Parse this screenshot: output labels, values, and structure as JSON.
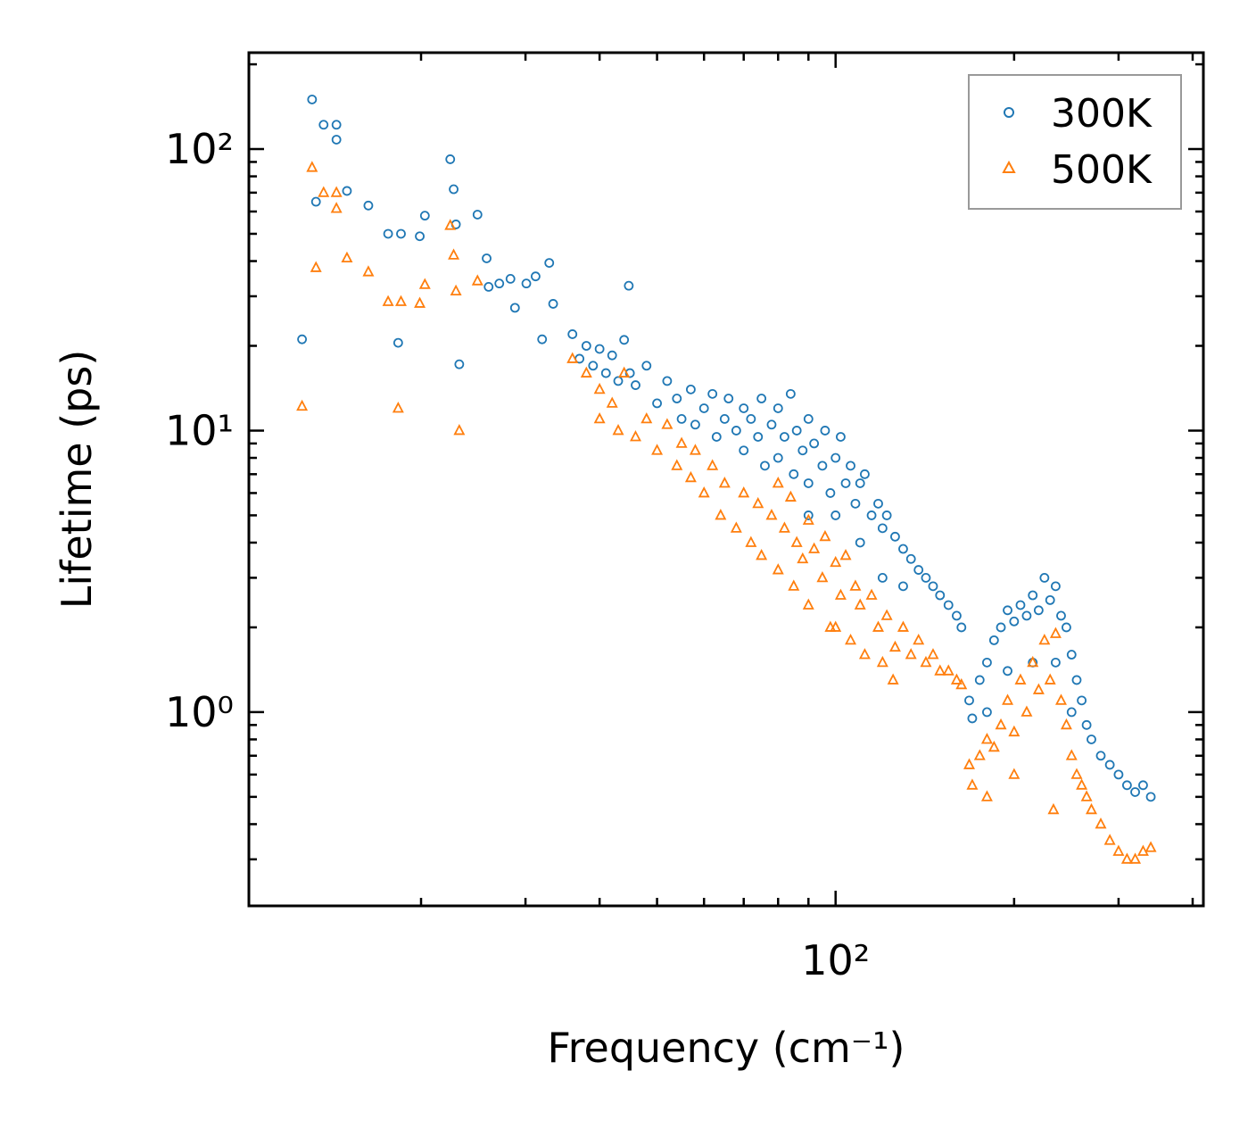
{
  "chart_data": {
    "type": "scatter",
    "title": "",
    "xlabel": "Frequency (cm⁻¹)",
    "ylabel": "Lifetime (ps)",
    "xscale": "log",
    "yscale": "log",
    "xlim": [
      10.25,
      417
    ],
    "ylim": [
      0.205,
      220
    ],
    "x_major_ticks": [
      100
    ],
    "x_tick_labels": [
      "10²"
    ],
    "x_minor_ticks": [
      20,
      30,
      40,
      50,
      60,
      70,
      80,
      90,
      200,
      300,
      400
    ],
    "y_major_ticks": [
      1,
      10,
      100
    ],
    "y_tick_labels": [
      "10⁰",
      "10¹",
      "10²"
    ],
    "y_minor_ticks": [
      0.3,
      0.4,
      0.5,
      0.6,
      0.7,
      0.8,
      0.9,
      2,
      3,
      4,
      5,
      6,
      7,
      8,
      9,
      20,
      30,
      40,
      50,
      60,
      70,
      80,
      90,
      200
    ],
    "grid": false,
    "legend_position": "top-right",
    "series": [
      {
        "name": "300K",
        "marker": "circle",
        "color": "#1f77b4",
        "points": [
          [
            12.6,
            21.1
          ],
          [
            13.1,
            150
          ],
          [
            13.3,
            65
          ],
          [
            13.7,
            122
          ],
          [
            14.4,
            122
          ],
          [
            14.4,
            108
          ],
          [
            15.0,
            71
          ],
          [
            16.3,
            63
          ],
          [
            17.6,
            50
          ],
          [
            18.5,
            50
          ],
          [
            18.3,
            20.5
          ],
          [
            19.9,
            49
          ],
          [
            20.3,
            58
          ],
          [
            22.4,
            92
          ],
          [
            22.7,
            72
          ],
          [
            22.9,
            54
          ],
          [
            23.2,
            17.2
          ],
          [
            24.9,
            58.5
          ],
          [
            25.8,
            40.9
          ],
          [
            26.0,
            32.4
          ],
          [
            27.1,
            33.3
          ],
          [
            28.3,
            34.6
          ],
          [
            28.8,
            27.3
          ],
          [
            30.1,
            33.3
          ],
          [
            31.2,
            35.3
          ],
          [
            32.9,
            39.4
          ],
          [
            33.4,
            28.2
          ],
          [
            44.8,
            32.7
          ],
          [
            32.0,
            21.1
          ],
          [
            36,
            22
          ],
          [
            37,
            18
          ],
          [
            38,
            20
          ],
          [
            39,
            17
          ],
          [
            40,
            19.5
          ],
          [
            41,
            16
          ],
          [
            42,
            18.5
          ],
          [
            43,
            15
          ],
          [
            44,
            21
          ],
          [
            45,
            16
          ],
          [
            46,
            14.5
          ],
          [
            48,
            17
          ],
          [
            50,
            12.5
          ],
          [
            52,
            15
          ],
          [
            54,
            13
          ],
          [
            55,
            11
          ],
          [
            57,
            14
          ],
          [
            58,
            10.5
          ],
          [
            60,
            12
          ],
          [
            62,
            13.5
          ],
          [
            63,
            9.5
          ],
          [
            65,
            11
          ],
          [
            66,
            13
          ],
          [
            68,
            10
          ],
          [
            70,
            12
          ],
          [
            70,
            8.5
          ],
          [
            72,
            11
          ],
          [
            74,
            9.5
          ],
          [
            75,
            13
          ],
          [
            76,
            7.5
          ],
          [
            78,
            10.5
          ],
          [
            80,
            12
          ],
          [
            80,
            8
          ],
          [
            82,
            9.5
          ],
          [
            84,
            13.5
          ],
          [
            85,
            7
          ],
          [
            86,
            10
          ],
          [
            88,
            8.5
          ],
          [
            90,
            11
          ],
          [
            90,
            6.5
          ],
          [
            92,
            9
          ],
          [
            95,
            7.5
          ],
          [
            96,
            10
          ],
          [
            98,
            6
          ],
          [
            100,
            8
          ],
          [
            102,
            9.5
          ],
          [
            104,
            6.5
          ],
          [
            106,
            7.5
          ],
          [
            108,
            5.5
          ],
          [
            110,
            6.5
          ],
          [
            112,
            7
          ],
          [
            115,
            5
          ],
          [
            118,
            5.5
          ],
          [
            120,
            4.5
          ],
          [
            122,
            5
          ],
          [
            126,
            4.2
          ],
          [
            130,
            3.8
          ],
          [
            134,
            3.5
          ],
          [
            138,
            3.2
          ],
          [
            142,
            3
          ],
          [
            146,
            2.8
          ],
          [
            150,
            2.6
          ],
          [
            155,
            2.4
          ],
          [
            160,
            2.2
          ],
          [
            163,
            2.0
          ],
          [
            168,
            1.1
          ],
          [
            170,
            0.95
          ],
          [
            175,
            1.3
          ],
          [
            180,
            1.5
          ],
          [
            185,
            1.8
          ],
          [
            190,
            2.0
          ],
          [
            195,
            2.3
          ],
          [
            200,
            2.1
          ],
          [
            205,
            2.4
          ],
          [
            210,
            2.2
          ],
          [
            215,
            2.6
          ],
          [
            220,
            2.3
          ],
          [
            225,
            3.0
          ],
          [
            230,
            2.5
          ],
          [
            235,
            2.8
          ],
          [
            240,
            2.2
          ],
          [
            245,
            2.0
          ],
          [
            250,
            1.6
          ],
          [
            255,
            1.3
          ],
          [
            260,
            1.1
          ],
          [
            265,
            0.9
          ],
          [
            270,
            0.8
          ],
          [
            280,
            0.7
          ],
          [
            290,
            0.65
          ],
          [
            300,
            0.6
          ],
          [
            310,
            0.55
          ],
          [
            320,
            0.52
          ],
          [
            330,
            0.55
          ],
          [
            340,
            0.5
          ],
          [
            195,
            1.4
          ],
          [
            215,
            1.5
          ],
          [
            235,
            1.5
          ],
          [
            180,
            1.0
          ],
          [
            250,
            1.0
          ],
          [
            120,
            3.0
          ],
          [
            100,
            5
          ],
          [
            110,
            4
          ],
          [
            90,
            5
          ],
          [
            130,
            2.8
          ]
        ]
      },
      {
        "name": "500K",
        "marker": "triangle",
        "color": "#ff7f0e",
        "points": [
          [
            12.6,
            12.2
          ],
          [
            13.1,
            86
          ],
          [
            13.3,
            37.9
          ],
          [
            13.7,
            70
          ],
          [
            14.4,
            70
          ],
          [
            14.4,
            61.5
          ],
          [
            15.0,
            41
          ],
          [
            16.3,
            36.6
          ],
          [
            17.6,
            28.7
          ],
          [
            18.5,
            28.7
          ],
          [
            18.3,
            12
          ],
          [
            19.9,
            28.3
          ],
          [
            20.3,
            33
          ],
          [
            22.4,
            53.5
          ],
          [
            22.7,
            42
          ],
          [
            22.9,
            31.3
          ],
          [
            23.2,
            10
          ],
          [
            24.9,
            34
          ],
          [
            36,
            18
          ],
          [
            38,
            16
          ],
          [
            40,
            14
          ],
          [
            40,
            11
          ],
          [
            42,
            12.5
          ],
          [
            43,
            10
          ],
          [
            44,
            16
          ],
          [
            46,
            9.5
          ],
          [
            48,
            11
          ],
          [
            50,
            8.5
          ],
          [
            52,
            10.5
          ],
          [
            54,
            7.5
          ],
          [
            55,
            9
          ],
          [
            57,
            6.8
          ],
          [
            58,
            8.5
          ],
          [
            60,
            6
          ],
          [
            62,
            7.5
          ],
          [
            64,
            5
          ],
          [
            65,
            6.5
          ],
          [
            68,
            4.5
          ],
          [
            70,
            6
          ],
          [
            72,
            4
          ],
          [
            74,
            5.5
          ],
          [
            75,
            3.6
          ],
          [
            78,
            5
          ],
          [
            80,
            6.5
          ],
          [
            80,
            3.2
          ],
          [
            82,
            4.5
          ],
          [
            84,
            5.8
          ],
          [
            85,
            2.8
          ],
          [
            86,
            4
          ],
          [
            88,
            3.5
          ],
          [
            90,
            4.8
          ],
          [
            90,
            2.4
          ],
          [
            92,
            3.8
          ],
          [
            95,
            3
          ],
          [
            96,
            4.2
          ],
          [
            98,
            2
          ],
          [
            100,
            3.4
          ],
          [
            102,
            2.6
          ],
          [
            104,
            3.6
          ],
          [
            106,
            1.8
          ],
          [
            108,
            2.8
          ],
          [
            110,
            2.4
          ],
          [
            112,
            1.6
          ],
          [
            115,
            2.6
          ],
          [
            118,
            2
          ],
          [
            120,
            1.5
          ],
          [
            122,
            2.2
          ],
          [
            126,
            1.7
          ],
          [
            130,
            2
          ],
          [
            134,
            1.6
          ],
          [
            138,
            1.8
          ],
          [
            142,
            1.5
          ],
          [
            146,
            1.6
          ],
          [
            150,
            1.4
          ],
          [
            155,
            1.4
          ],
          [
            160,
            1.3
          ],
          [
            163,
            1.25
          ],
          [
            168,
            0.65
          ],
          [
            170,
            0.55
          ],
          [
            175,
            0.7
          ],
          [
            180,
            0.8
          ],
          [
            185,
            0.75
          ],
          [
            190,
            0.9
          ],
          [
            195,
            1.1
          ],
          [
            200,
            0.85
          ],
          [
            205,
            1.3
          ],
          [
            210,
            1.0
          ],
          [
            215,
            1.5
          ],
          [
            220,
            1.2
          ],
          [
            225,
            1.8
          ],
          [
            230,
            1.3
          ],
          [
            235,
            1.9
          ],
          [
            240,
            1.1
          ],
          [
            245,
            0.9
          ],
          [
            250,
            0.7
          ],
          [
            255,
            0.6
          ],
          [
            260,
            0.55
          ],
          [
            265,
            0.5
          ],
          [
            270,
            0.45
          ],
          [
            280,
            0.4
          ],
          [
            290,
            0.35
          ],
          [
            300,
            0.32
          ],
          [
            310,
            0.3
          ],
          [
            320,
            0.3
          ],
          [
            330,
            0.32
          ],
          [
            340,
            0.33
          ],
          [
            233,
            0.45
          ],
          [
            200,
            0.6
          ],
          [
            180,
            0.5
          ],
          [
            125,
            1.3
          ],
          [
            100,
            2
          ]
        ]
      }
    ]
  }
}
